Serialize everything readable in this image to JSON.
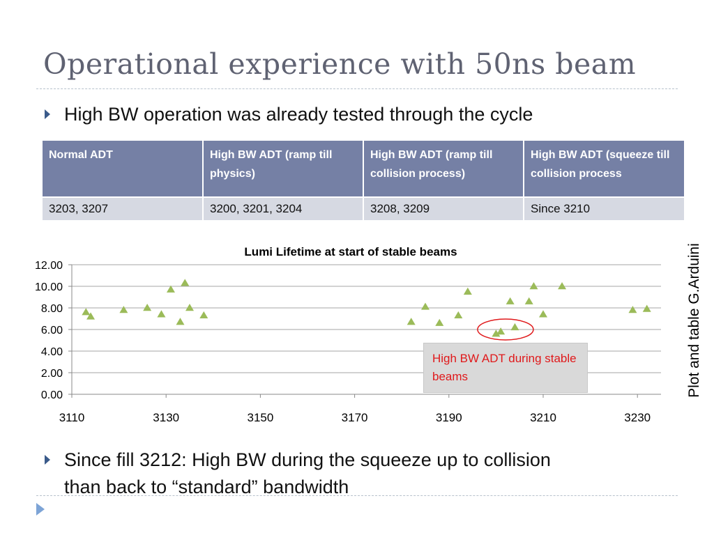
{
  "slide": {
    "title": "Operational experience with 50ns beam",
    "bullet1": "High BW operation was already tested through the cycle",
    "bullet2_line1": "Since fill 3212: High BW during the squeeze up to collision",
    "bullet2_line2": "than back to “standard” bandwidth",
    "credit": "Plot and table G.Arduini",
    "callout": "High BW ADT during stable beams"
  },
  "table": {
    "headers": [
      "Normal ADT",
      "High BW ADT (ramp till physics)",
      "High BW ADT (ramp till collision process)",
      "High BW ADT (squeeze till collision process"
    ],
    "row": [
      "3203, 3207",
      "3200, 3201, 3204",
      "3208, 3209",
      "Since 3210"
    ]
  },
  "chart_data": {
    "type": "scatter",
    "title": "Lumi Lifetime at start of stable beams",
    "xlabel": "",
    "ylabel": "",
    "xlim": [
      3110,
      3235
    ],
    "ylim": [
      0,
      12
    ],
    "x_ticks": [
      3110,
      3130,
      3150,
      3170,
      3190,
      3210,
      3230
    ],
    "y_ticks": [
      "0.00",
      "2.00",
      "4.00",
      "6.00",
      "8.00",
      "10.00",
      "12.00"
    ],
    "grid": "horizontal",
    "marker": "triangle",
    "marker_color": "#9bbb59",
    "highlight_ellipse_color": "#e0191b",
    "points": [
      {
        "x": 3113,
        "y": 7.6
      },
      {
        "x": 3114,
        "y": 7.2
      },
      {
        "x": 3121,
        "y": 7.8
      },
      {
        "x": 3126,
        "y": 8.0
      },
      {
        "x": 3129,
        "y": 7.4
      },
      {
        "x": 3131,
        "y": 9.7
      },
      {
        "x": 3133,
        "y": 6.7
      },
      {
        "x": 3134,
        "y": 10.3
      },
      {
        "x": 3135,
        "y": 8.0
      },
      {
        "x": 3138,
        "y": 7.3
      },
      {
        "x": 3182,
        "y": 6.7
      },
      {
        "x": 3185,
        "y": 8.1
      },
      {
        "x": 3188,
        "y": 6.6
      },
      {
        "x": 3192,
        "y": 7.3
      },
      {
        "x": 3194,
        "y": 9.5
      },
      {
        "x": 3200,
        "y": 5.6
      },
      {
        "x": 3201,
        "y": 5.8
      },
      {
        "x": 3203,
        "y": 8.6
      },
      {
        "x": 3204,
        "y": 6.2
      },
      {
        "x": 3207,
        "y": 8.6
      },
      {
        "x": 3208,
        "y": 10.0
      },
      {
        "x": 3210,
        "y": 7.4
      },
      {
        "x": 3214,
        "y": 10.0
      },
      {
        "x": 3229,
        "y": 7.8
      },
      {
        "x": 3232,
        "y": 7.9
      }
    ]
  }
}
